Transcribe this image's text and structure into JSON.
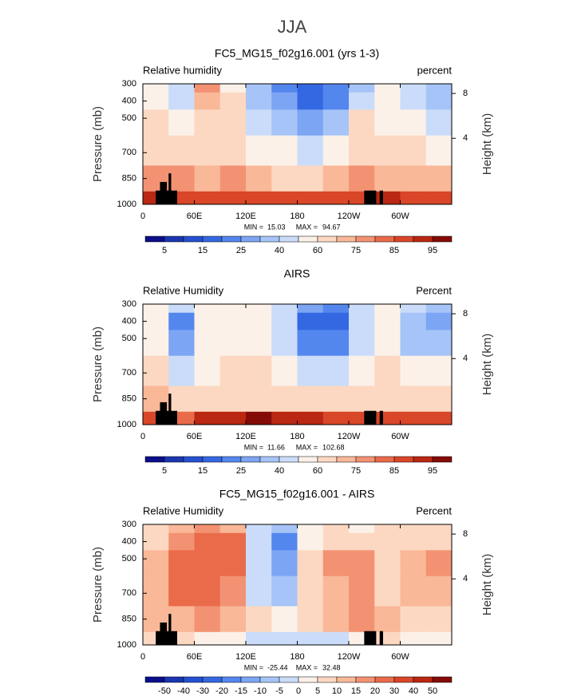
{
  "title": "JJA",
  "chart_data": [
    {
      "type": "contour",
      "title": "FC5_MG15_f02g16.001 (yrs 1-3)",
      "left_label": "Relative humidity",
      "right_label": "percent",
      "ylabel": "Pressure (mb)",
      "y2label": "Height (km)",
      "xlim": [
        0,
        360
      ],
      "xticks": [
        0,
        {
          "value": 60,
          "label": "60E"
        },
        {
          "value": 120,
          "label": "120E"
        },
        180,
        {
          "value": 240,
          "label": "120W"
        },
        {
          "value": 300,
          "label": "60W"
        }
      ],
      "ylim": [
        1000,
        300
      ],
      "yticks": [
        300,
        400,
        500,
        700,
        850,
        1000
      ],
      "y2ticks": [
        4,
        8
      ],
      "x": [
        15,
        45,
        75,
        105,
        135,
        165,
        195,
        225,
        255,
        285,
        315,
        345
      ],
      "levels_p": [
        300,
        400,
        500,
        700,
        850,
        1000
      ],
      "z": [
        [
          55,
          45,
          75,
          55,
          30,
          20,
          15,
          20,
          35,
          55,
          45,
          35
        ],
        [
          55,
          40,
          70,
          60,
          35,
          25,
          15,
          20,
          45,
          55,
          40,
          30
        ],
        [
          60,
          55,
          65,
          65,
          45,
          35,
          25,
          35,
          60,
          55,
          50,
          45
        ],
        [
          65,
          65,
          60,
          65,
          55,
          50,
          45,
          55,
          65,
          60,
          60,
          55
        ],
        [
          75,
          75,
          70,
          75,
          70,
          65,
          65,
          70,
          75,
          70,
          70,
          70
        ],
        [
          90,
          85,
          85,
          85,
          85,
          85,
          85,
          85,
          85,
          90,
          85,
          85
        ]
      ],
      "min_label": "MIN =",
      "min": 15.03,
      "max_label": "MAX =",
      "max": 94.67,
      "levels": [
        5,
        10,
        15,
        20,
        25,
        30,
        40,
        50,
        60,
        70,
        75,
        80,
        85,
        90,
        95
      ],
      "colorbar_ticks": [
        5,
        15,
        25,
        40,
        60,
        75,
        85,
        95
      ],
      "colors": [
        "#0b0f8a",
        "#1b36b0",
        "#2650d0",
        "#3468e2",
        "#5487ee",
        "#7ca5f4",
        "#a6c4f7",
        "#cadcf9",
        "#fbf1e8",
        "#fcd8c2",
        "#f9b898",
        "#f39272",
        "#ea6b4a",
        "#d94628",
        "#ba2712",
        "#850b07"
      ]
    },
    {
      "type": "contour",
      "title": "AIRS",
      "left_label": "Relative Humidity",
      "right_label": "Percent",
      "ylabel": "Pressure (mb)",
      "y2label": "Height (km)",
      "xlim": [
        0,
        360
      ],
      "xticks": [
        0,
        {
          "value": 60,
          "label": "60E"
        },
        {
          "value": 120,
          "label": "120E"
        },
        180,
        {
          "value": 240,
          "label": "120W"
        },
        {
          "value": 300,
          "label": "60W"
        }
      ],
      "ylim": [
        1000,
        300
      ],
      "yticks": [
        300,
        400,
        500,
        700,
        850,
        1000
      ],
      "y2ticks": [
        4,
        8
      ],
      "x": [
        15,
        45,
        75,
        105,
        135,
        165,
        195,
        225,
        255,
        285,
        315,
        345
      ],
      "levels_p": [
        300,
        400,
        500,
        700,
        850,
        1000
      ],
      "z": [
        [
          50,
          40,
          55,
          50,
          55,
          45,
          25,
          20,
          45,
          55,
          40,
          35
        ],
        [
          55,
          20,
          50,
          50,
          50,
          40,
          15,
          15,
          40,
          50,
          30,
          25
        ],
        [
          55,
          25,
          50,
          55,
          55,
          45,
          20,
          20,
          45,
          55,
          35,
          30
        ],
        [
          60,
          45,
          55,
          60,
          60,
          55,
          45,
          45,
          55,
          60,
          50,
          50
        ],
        [
          70,
          65,
          65,
          65,
          65,
          65,
          65,
          65,
          65,
          65,
          65,
          65
        ],
        [
          85,
          80,
          90,
          90,
          95,
          90,
          90,
          85,
          85,
          85,
          85,
          85
        ]
      ],
      "min_label": "MIN =",
      "min": 11.66,
      "max_label": "MAX =",
      "max": 102.68,
      "levels": [
        5,
        10,
        15,
        20,
        25,
        30,
        40,
        50,
        60,
        70,
        75,
        80,
        85,
        90,
        95
      ],
      "colorbar_ticks": [
        5,
        15,
        25,
        40,
        60,
        75,
        85,
        95
      ],
      "colors": [
        "#0b0f8a",
        "#1b36b0",
        "#2650d0",
        "#3468e2",
        "#5487ee",
        "#7ca5f4",
        "#a6c4f7",
        "#cadcf9",
        "#fbf1e8",
        "#fcd8c2",
        "#f9b898",
        "#f39272",
        "#ea6b4a",
        "#d94628",
        "#ba2712",
        "#850b07"
      ]
    },
    {
      "type": "contour",
      "title": "FC5_MG15_f02g16.001 - AIRS",
      "left_label": "Relative Humidity",
      "right_label": "Percent",
      "ylabel": "Pressure (mb)",
      "y2label": "Height (km)",
      "xlim": [
        0,
        360
      ],
      "xticks": [
        0,
        {
          "value": 60,
          "label": "60E"
        },
        {
          "value": 120,
          "label": "120E"
        },
        180,
        {
          "value": 240,
          "label": "120W"
        },
        {
          "value": 300,
          "label": "60W"
        }
      ],
      "ylim": [
        1000,
        300
      ],
      "yticks": [
        300,
        400,
        500,
        700,
        850,
        1000
      ],
      "y2ticks": [
        4,
        8
      ],
      "x": [
        15,
        45,
        75,
        105,
        135,
        165,
        195,
        225,
        255,
        285,
        315,
        345
      ],
      "levels_p": [
        300,
        400,
        500,
        700,
        850,
        1000
      ],
      "z": [
        [
          5,
          10,
          15,
          10,
          -5,
          -10,
          0,
          5,
          0,
          5,
          5,
          5
        ],
        [
          5,
          15,
          20,
          20,
          -5,
          -20,
          0,
          5,
          5,
          5,
          5,
          5
        ],
        [
          10,
          20,
          20,
          20,
          -5,
          -15,
          5,
          15,
          15,
          5,
          10,
          15
        ],
        [
          10,
          20,
          20,
          15,
          -5,
          -10,
          5,
          10,
          15,
          5,
          10,
          10
        ],
        [
          10,
          10,
          15,
          10,
          5,
          0,
          5,
          10,
          15,
          10,
          5,
          5
        ],
        [
          5,
          5,
          0,
          0,
          -5,
          -5,
          -5,
          -5,
          0,
          5,
          0,
          0
        ]
      ],
      "min_label": "MIN =",
      "min": -25.44,
      "max_label": "MAX =",
      "max": 32.48,
      "levels": [
        -50,
        -40,
        -30,
        -20,
        -15,
        -10,
        -5,
        0,
        5,
        10,
        15,
        20,
        30,
        40,
        50
      ],
      "colorbar_ticks": [
        -50,
        -40,
        -30,
        -20,
        -15,
        -10,
        -5,
        0,
        5,
        10,
        15,
        20,
        30,
        40,
        50
      ],
      "colors": [
        "#0b0f8a",
        "#1b36b0",
        "#2650d0",
        "#3468e2",
        "#5487ee",
        "#7ca5f4",
        "#a6c4f7",
        "#cadcf9",
        "#fbf1e8",
        "#fcd8c2",
        "#f9b898",
        "#f39272",
        "#ea6b4a",
        "#d94628",
        "#ba2712",
        "#850b07"
      ]
    }
  ]
}
